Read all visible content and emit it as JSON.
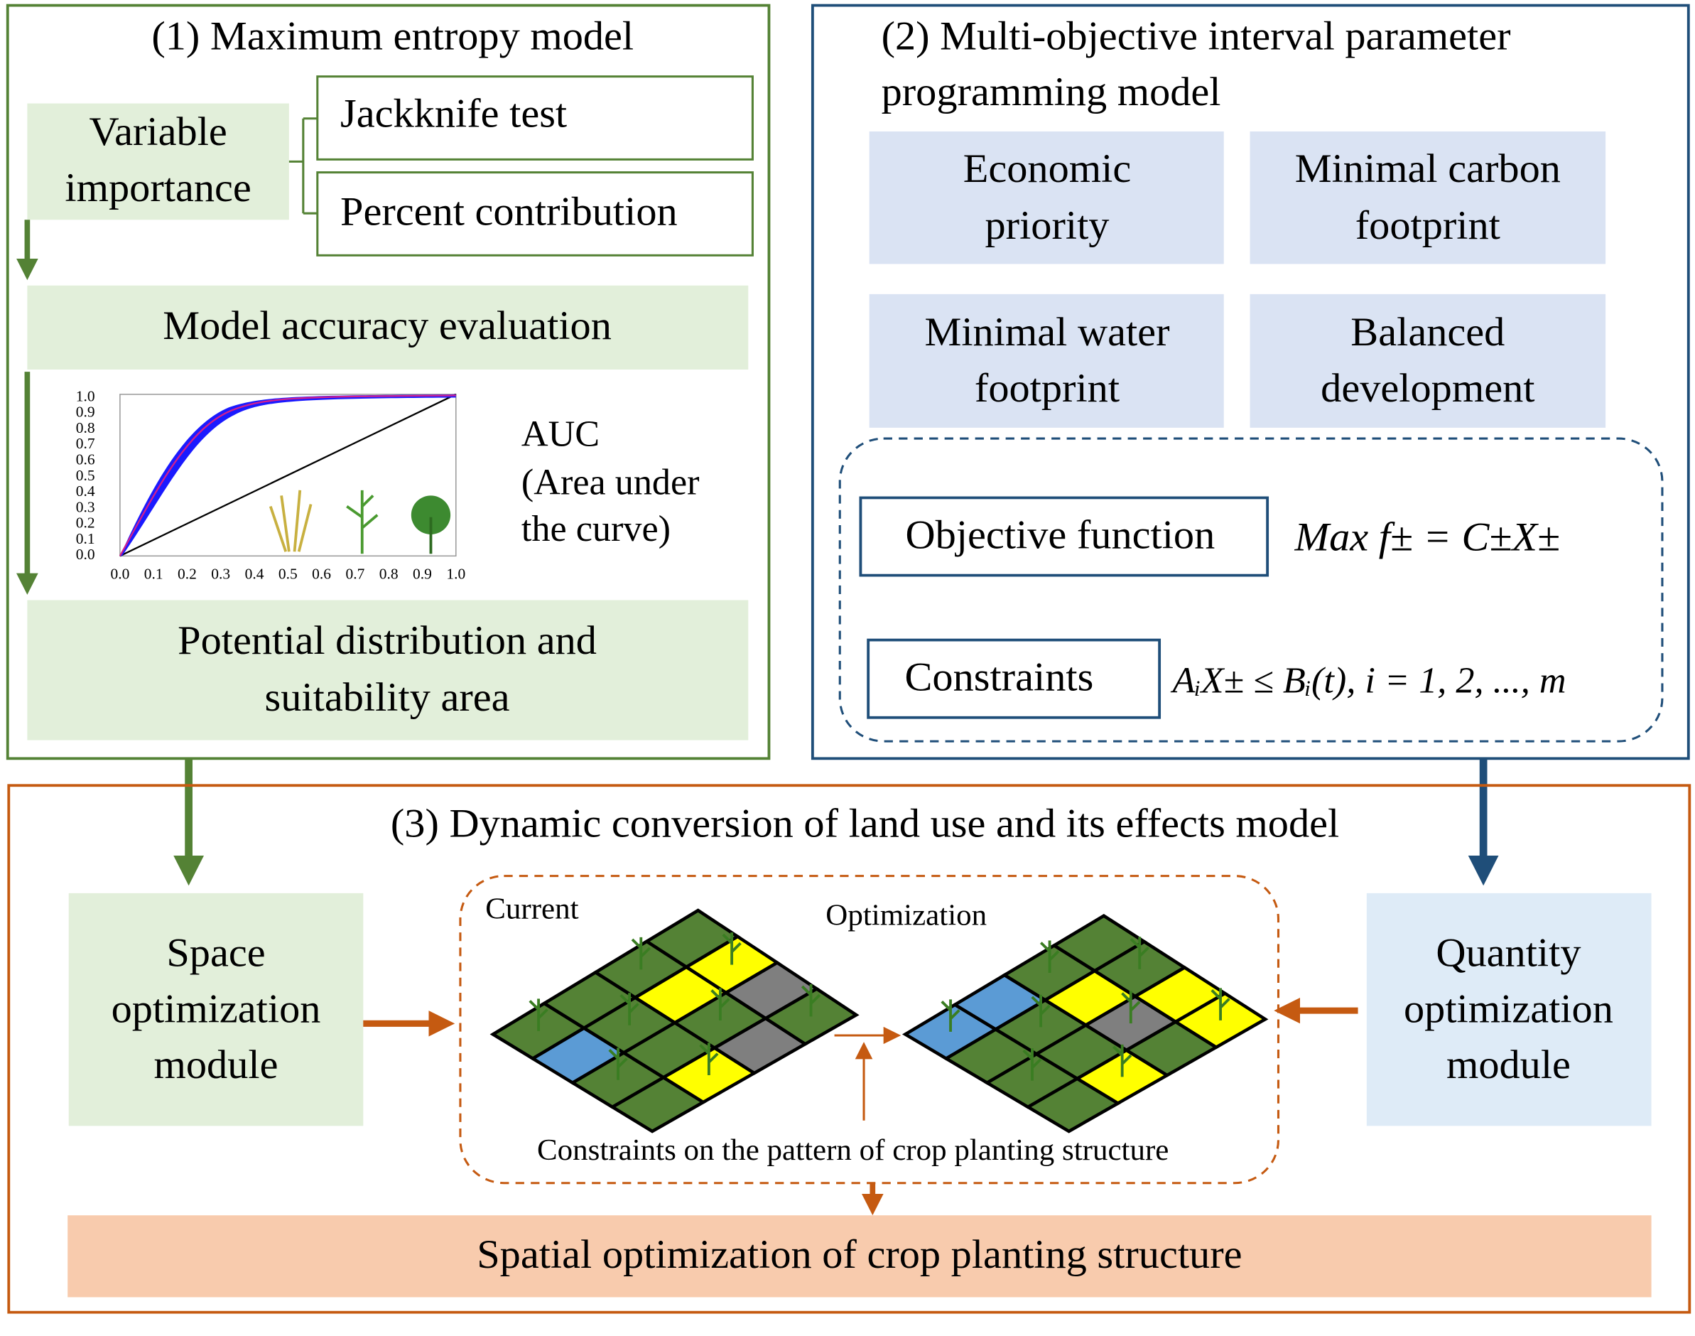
{
  "panel1": {
    "title": "(1) Maximum entropy model",
    "variable_importance": [
      "Variable",
      "importance"
    ],
    "methods": [
      "Jackknife test",
      "Percent contribution"
    ],
    "accuracy": "Model accuracy evaluation",
    "roc": {
      "yticks": [
        "1.0",
        "0.9",
        "0.8",
        "0.7",
        "0.6",
        "0.5",
        "0.4",
        "0.3",
        "0.2",
        "0.1",
        "0.0"
      ],
      "xticks": [
        "0.0",
        "0.1",
        "0.2",
        "0.3",
        "0.4",
        "0.5",
        "0.6",
        "0.7",
        "0.8",
        "0.9",
        "1.0"
      ]
    },
    "auc": [
      "AUC",
      "(Area under",
      "the curve)"
    ],
    "result": [
      "Potential distribution and",
      "suitability area"
    ]
  },
  "panel2": {
    "title": [
      "(2) Multi-objective interval parameter",
      "programming model"
    ],
    "objectives": [
      [
        "Economic",
        "priority"
      ],
      [
        "Minimal carbon",
        "footprint"
      ],
      [
        "Minimal water",
        "footprint"
      ],
      [
        "Balanced",
        "development"
      ]
    ],
    "objective_function": "Objective function",
    "objective_formula": "Max f± = C±X±",
    "constraints": "Constraints",
    "constraint_formula": "AᵢX± ≤ Bᵢ(t),  i = 1, 2, ..., m"
  },
  "panel3": {
    "title": "(3) Dynamic conversion of land use and its effects model",
    "space_module": [
      "Space",
      "optimization",
      "module"
    ],
    "current": "Current",
    "optimization": "Optimization",
    "pattern_constraints": "Constraints on the pattern of crop planting structure",
    "quantity_module": [
      "Quantity",
      "optimization",
      "module"
    ],
    "result": "Spatial optimization of crop planting structure"
  }
}
